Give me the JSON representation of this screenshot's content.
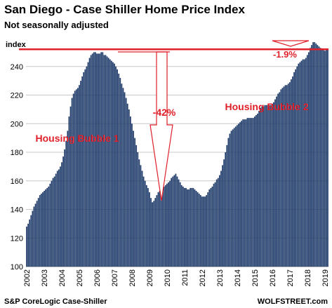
{
  "chart_data": {
    "type": "bar",
    "title": "San Diego - Case Shiller Home Price Index",
    "subtitle": "Not seasonally adjusted",
    "y_label": "index",
    "source": "S&P CoreLogic Case-Shiller",
    "credit": "WOLFSTREET.com",
    "annotations": [
      "-42%",
      "Housing Bubble 1",
      "Housing Bubble 2",
      "-1.9%"
    ],
    "reference_line": 252,
    "reference_color": "#e0202a",
    "color": "#1f3b6a",
    "grid": true,
    "ylim": [
      100,
      260
    ],
    "yticks": [
      100,
      120,
      140,
      160,
      180,
      200,
      220,
      240
    ],
    "categories": [
      "2002",
      null,
      null,
      null,
      null,
      null,
      null,
      null,
      null,
      null,
      null,
      null,
      "2003",
      null,
      null,
      null,
      null,
      null,
      null,
      null,
      null,
      null,
      null,
      null,
      "2004",
      null,
      null,
      null,
      null,
      null,
      null,
      null,
      null,
      null,
      null,
      null,
      "2005",
      null,
      null,
      null,
      null,
      null,
      null,
      null,
      null,
      null,
      null,
      null,
      "2006",
      null,
      null,
      null,
      null,
      null,
      null,
      null,
      null,
      null,
      null,
      null,
      "2007",
      null,
      null,
      null,
      null,
      null,
      null,
      null,
      null,
      null,
      null,
      null,
      "2008",
      null,
      null,
      null,
      null,
      null,
      null,
      null,
      null,
      null,
      null,
      null,
      "2009",
      null,
      null,
      null,
      null,
      null,
      null,
      null,
      null,
      null,
      null,
      null,
      "2010",
      null,
      null,
      null,
      null,
      null,
      null,
      null,
      null,
      null,
      null,
      null,
      "2011",
      null,
      null,
      null,
      null,
      null,
      null,
      null,
      null,
      null,
      null,
      null,
      "2012",
      null,
      null,
      null,
      null,
      null,
      null,
      null,
      null,
      null,
      null,
      null,
      "2013",
      null,
      null,
      null,
      null,
      null,
      null,
      null,
      null,
      null,
      null,
      null,
      "2014",
      null,
      null,
      null,
      null,
      null,
      null,
      null,
      null,
      null,
      null,
      null,
      "2015",
      null,
      null,
      null,
      null,
      null,
      null,
      null,
      null,
      null,
      null,
      null,
      "2016",
      null,
      null,
      null,
      null,
      null,
      null,
      null,
      null,
      null,
      null,
      null,
      "2017",
      null,
      null,
      null,
      null,
      null,
      null,
      null,
      null,
      null,
      null,
      null,
      "2018",
      null,
      null,
      null,
      null,
      null,
      null,
      null,
      null,
      null,
      null,
      null,
      "2019",
      null,
      null
    ],
    "values": [
      128,
      130,
      133,
      136,
      139,
      142,
      144,
      146,
      148,
      150,
      151,
      152,
      153,
      154,
      155,
      156,
      158,
      160,
      162,
      163,
      165,
      167,
      168,
      170,
      173,
      177,
      182,
      188,
      195,
      205,
      212,
      218,
      221,
      223,
      224,
      225,
      227,
      230,
      233,
      236,
      238,
      240,
      243,
      246,
      248,
      249,
      250,
      250,
      249,
      249,
      249,
      250,
      250,
      248,
      248,
      247,
      246,
      245,
      244,
      243,
      242,
      240,
      238,
      235,
      232,
      228,
      225,
      222,
      218,
      214,
      210,
      205,
      200,
      195,
      190,
      185,
      180,
      175,
      171,
      167,
      163,
      160,
      157,
      155,
      152,
      148,
      145,
      146,
      148,
      150,
      152,
      153,
      154,
      155,
      156,
      157,
      158,
      159,
      160,
      162,
      163,
      164,
      165,
      163,
      161,
      159,
      157,
      156,
      155,
      155,
      154,
      154,
      155,
      155,
      155,
      154,
      153,
      152,
      151,
      150,
      149,
      149,
      149,
      150,
      152,
      154,
      155,
      156,
      158,
      159,
      161,
      162,
      164,
      167,
      171,
      175,
      180,
      185,
      190,
      193,
      195,
      196,
      197,
      198,
      199,
      200,
      201,
      202,
      203,
      203,
      203,
      204,
      204,
      204,
      204,
      204,
      205,
      206,
      207,
      209,
      211,
      212,
      212,
      213,
      213,
      213,
      213,
      213,
      214,
      215,
      217,
      219,
      221,
      222,
      224,
      225,
      226,
      227,
      227,
      228,
      229,
      231,
      233,
      236,
      238,
      240,
      242,
      243,
      244,
      245,
      245,
      246,
      248,
      250,
      253,
      255,
      257,
      257,
      256,
      255,
      254,
      253,
      252,
      252,
      251,
      252,
      252
    ]
  }
}
